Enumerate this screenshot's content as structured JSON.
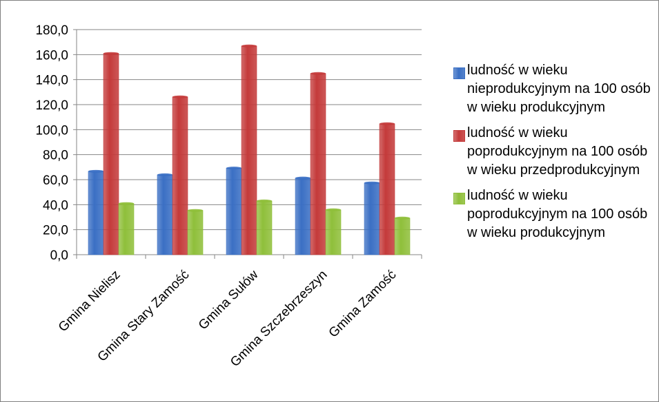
{
  "chart_data": {
    "type": "bar",
    "categories": [
      "Gmina Nielisz",
      "Gmina Stary Zamość",
      "Gmina Sułów",
      "Gmina Szczebrzeszyn",
      "Gmina Zamość"
    ],
    "series": [
      {
        "name": "ludność w wieku nieprodukcyjnym na 100 osób w wieku produkcyjnym",
        "values": [
          66.7,
          63.9,
          69.3,
          61.3,
          57.4
        ],
        "color": "#3a6fc4"
      },
      {
        "name": "ludność w wieku poprodukcyjnym na 100 osób w wieku przedprodukcyjnym",
        "values": [
          160.9,
          126.2,
          166.9,
          144.9,
          104.7
        ],
        "color": "#c43a3a"
      },
      {
        "name": "ludność w wieku poprodukcyjnym na 100 osób w wieku produkcyjnym",
        "values": [
          40.9,
          35.4,
          43.0,
          35.9,
          29.3
        ],
        "color": "#8fbf3a"
      }
    ],
    "ylim": [
      0,
      180
    ],
    "yticks": [
      "0,0",
      "20,0",
      "40,0",
      "60,0",
      "80,0",
      "100,0",
      "120,0",
      "140,0",
      "160,0",
      "180,0"
    ],
    "grid": true,
    "legend": "right"
  }
}
